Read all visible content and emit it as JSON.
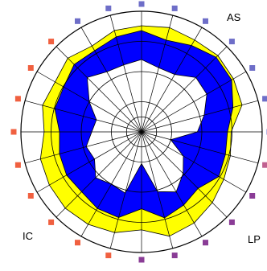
{
  "chart_data": {
    "type": "radar",
    "title": "",
    "grid": true,
    "grid_rings": [
      0.5,
      1,
      2,
      3,
      4
    ],
    "spokes": 24,
    "region_labels": [
      {
        "text": "AS",
        "angle": 30
      },
      {
        "text": "IC",
        "angle": 225
      },
      {
        "text": "LP",
        "angle": 135
      }
    ],
    "series": [
      {
        "color": "#ffff00",
        "values": [
          3.52,
          3.58,
          3.52,
          3.58,
          3.52,
          3.45,
          2.97,
          3.05,
          3.15,
          3.32,
          3.49,
          3.58,
          3.25,
          3.46,
          3.54,
          3.58,
          3.53,
          3.47,
          3.23,
          3.4,
          3.31,
          3.46,
          3.29,
          3.48
        ]
      },
      {
        "color": "#0000ff",
        "values": [
          3.36,
          3.15,
          3.31,
          3.5,
          3.45,
          3.14,
          2.85,
          2.88,
          2.96,
          2.65,
          2.8,
          2.95,
          2.55,
          2.94,
          2.93,
          2.81,
          2.87,
          2.82,
          2.72,
          2.98,
          2.98,
          3.16,
          3.11,
          3.26
        ]
      },
      {
        "color": "#ffffff",
        "values": [
          2.4,
          2.2,
          2.2,
          2.55,
          2.5,
          2.15,
          1.85,
          1.0,
          1.6,
          1.95,
          2.3,
          2.05,
          1.05,
          2.1,
          2.0,
          2.15,
          1.8,
          1.9,
          1.65,
          1.55,
          2.0,
          2.55,
          2.3,
          2.3
        ]
      }
    ],
    "markers": {
      "count": 24,
      "colors": [
        "#6e6ec8",
        "#6e6ec8",
        "#6e6ec8",
        "#6e6ec8",
        "#6e6ec8",
        "#6e6ec8",
        "#6e6ec8",
        "#c06090",
        "#8a3c96",
        "#8a3c96",
        "#8a3c96",
        "#8a3c96",
        "#8a3c96",
        "#f06040",
        "#f06040",
        "#f06040",
        "#f06040",
        "#f06040",
        "#f06040",
        "#f06040",
        "#f06040",
        "#f06040",
        "#6e6ec8",
        "#6e6ec8"
      ]
    }
  }
}
